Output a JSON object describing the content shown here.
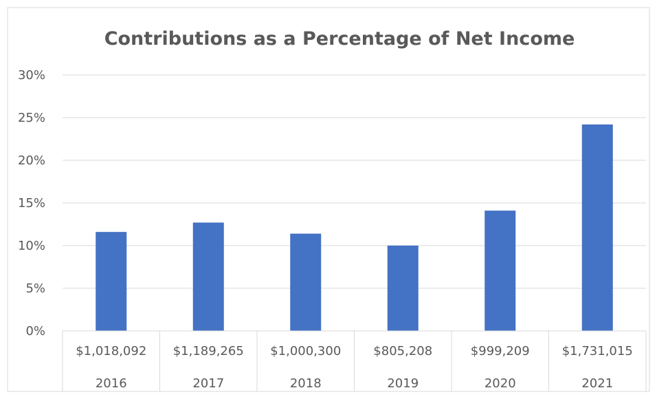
{
  "chart_data": {
    "type": "bar",
    "title": "Contributions as a Percentage of Net Income",
    "xlabel": "",
    "ylabel": "",
    "ylim": [
      0,
      30
    ],
    "y_ticks": [
      "0%",
      "5%",
      "10%",
      "15%",
      "20%",
      "25%",
      "30%"
    ],
    "categories": [
      {
        "amount": "$1,018,092",
        "year": "2016"
      },
      {
        "amount": "$1,189,265",
        "year": "2017"
      },
      {
        "amount": "$1,000,300",
        "year": "2018"
      },
      {
        "amount": "$805,208",
        "year": "2019"
      },
      {
        "amount": "$999,209",
        "year": "2020"
      },
      {
        "amount": "$1,731,015",
        "year": "2021"
      }
    ],
    "values": [
      11.6,
      12.7,
      11.4,
      10.0,
      14.1,
      24.2
    ],
    "grid": true,
    "legend": "none",
    "bar_color": "#4472C4"
  }
}
